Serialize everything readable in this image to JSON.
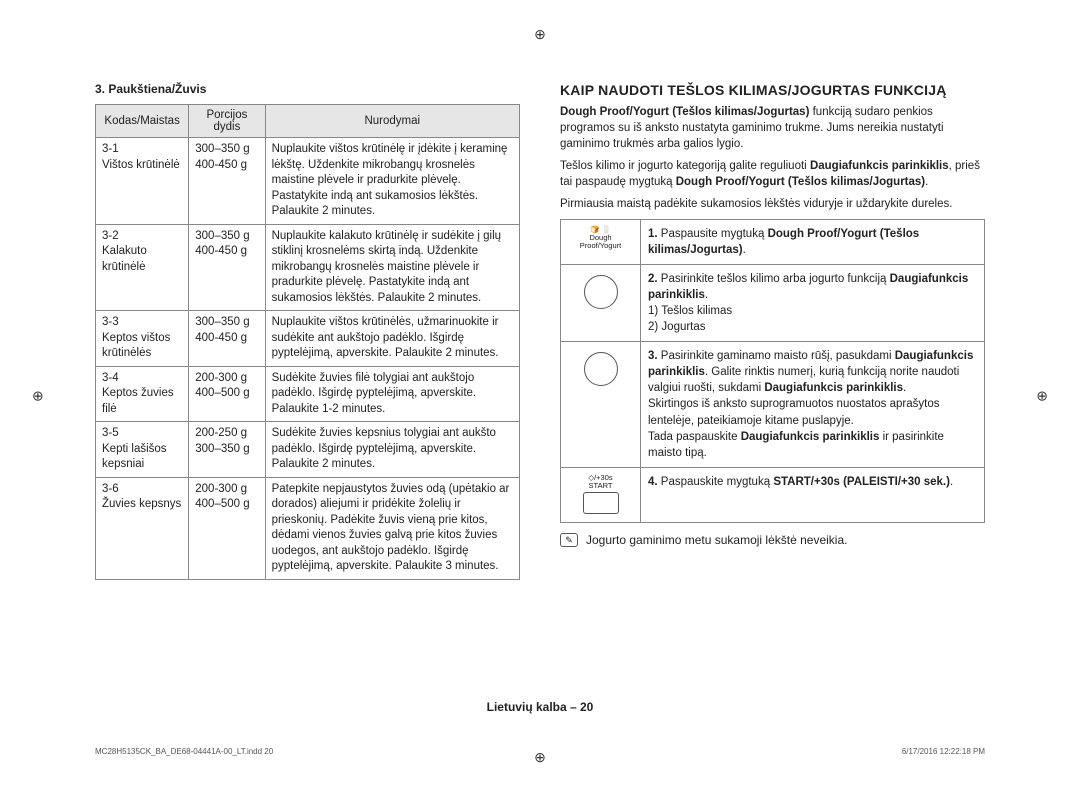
{
  "left": {
    "section_title": "3. Paukštiena/Žuvis",
    "headers": {
      "code": "Kodas/Maistas",
      "portion": "Porcijos dydis",
      "instructions": "Nurodymai"
    },
    "rows": [
      {
        "code": "3-1\nVištos krūtinėlė",
        "portion": "300–350 g\n400-450 g",
        "instr": "Nuplaukite vištos krūtinėlę ir įdėkite į keraminę lėkštę. Uždenkite mikrobangų krosnelės maistine plėvele ir pradurkite plėvelę. Pastatykite indą ant sukamosios lėkštės. Palaukite 2 minutes."
      },
      {
        "code": "3-2\nKalakuto krūtinėlė",
        "portion": "300–350 g\n400-450 g",
        "instr": "Nuplaukite kalakuto krūtinėlę ir sudėkite į gilų stiklinį krosnelėms skirtą indą. Uždenkite mikrobangų krosnelės maistine plėvele ir pradurkite plėvelę. Pastatykite indą ant sukamosios lėkštės. Palaukite 2 minutes."
      },
      {
        "code": "3-3\nKeptos vištos krūtinėlės",
        "portion": "300–350 g\n400-450 g",
        "instr": "Nuplaukite vištos krūtinėlės, užmarinuokite ir sudėkite ant aukštojo padėklo. Išgirdę pyptelėjimą, apverskite. Palaukite 2 minutes."
      },
      {
        "code": "3-4\nKeptos žuvies filė",
        "portion": "200-300 g\n400–500 g",
        "instr": "Sudėkite žuvies filė tolygiai ant aukštojo padėklo. Išgirdę pyptelėjimą, apverskite. Palaukite 1-2 minutes."
      },
      {
        "code": "3-5\nKepti lašišos kepsniai",
        "portion": "200-250 g\n300–350 g",
        "instr": "Sudėkite žuvies kepsnius tolygiai ant aukšto padėklo. Išgirdę pyptelėjimą, apverskite. Palaukite 2 minutes."
      },
      {
        "code": "3-6\nŽuvies kepsnys",
        "portion": "200-300 g\n400–500 g",
        "instr": "Patepkite nepjaustytos žuvies odą (upėtakio ar dorados) aliejumi ir pridėkite žolelių ir prieskonių. Padėkite žuvis vieną prie kitos, dėdami vienos žuvies galvą prie kitos žuvies uodegos, ant aukštojo padėklo. Išgirdę pyptelėjimą, apverskite. Palaukite 3 minutes."
      }
    ]
  },
  "right": {
    "heading": "KAIP NAUDOTI TEŠLOS KILIMAS/JOGURTAS FUNKCIJĄ",
    "p1_a": "Dough Proof/Yogurt (Tešlos kilimas/Jogurtas)",
    "p1_b": " funkciją sudaro penkios programos su iš anksto nustatyta gaminimo trukme. Jums nereikia nustatyti gaminimo trukmės arba galios lygio.",
    "p2_a": "Tešlos kilimo ir jogurto kategoriją galite reguliuoti ",
    "p2_b": "Daugiafunkcis parinkiklis",
    "p2_c": ", prieš tai paspaudę mygtuką ",
    "p2_d": "Dough Proof/Yogurt (Tešlos kilimas/Jogurtas)",
    "p2_e": ".",
    "p3": "Pirmiausia maistą padėkite sukamosios lėkštės viduryje ir uždarykite dureles.",
    "steps": [
      {
        "icon_label": "Dough Proof/Yogurt",
        "num": "1.",
        "text_a": "Paspausite mygtuką ",
        "text_b": "Dough Proof/Yogurt (Tešlos kilimas/Jogurtas)",
        "text_c": "."
      },
      {
        "icon_label": "",
        "num": "2.",
        "text_a": "Pasirinkite tešlos kilimo arba jogurto funkciją ",
        "text_b": "Daugiafunkcis parinkiklis",
        "text_c": ".",
        "sub1": "1) Tešlos kilimas",
        "sub2": "2) Jogurtas"
      },
      {
        "icon_label": "",
        "num": "3.",
        "text_a": "Pasirinkite gaminamo maisto rūšį, pasukdami ",
        "text_b": "Daugiafunkcis parinkiklis",
        "text_c": ". Galite rinktis numerį, kurią funkciją norite naudoti valgiui ruošti, sukdami ",
        "text_d": "Daugiafunkcis parinkiklis",
        "text_e": ".",
        "extra1": "Skirtingos iš anksto suprogramuotos nuostatos aprašytos lentelėje, pateikiamoje kitame puslapyje.",
        "extra2a": "Tada paspauskite ",
        "extra2b": "Daugiafunkcis parinkiklis",
        "extra2c": " ir pasirinkite maisto tipą."
      },
      {
        "icon_label": "START",
        "icon_symbol": "◇/+30s",
        "num": "4.",
        "text_a": "Paspauskite mygtuką ",
        "text_b": "START/+30s (PALEISTI/+30 sek.)",
        "text_c": "."
      }
    ],
    "note": "Jogurto gaminimo metu sukamoji lėkštė neveikia."
  },
  "footer": "Lietuvių kalba – 20",
  "print_left": "MC28H5135CK_BA_DE68-04441A-00_LT.indd   20",
  "print_right": "6/17/2016   12:22:18 PM"
}
